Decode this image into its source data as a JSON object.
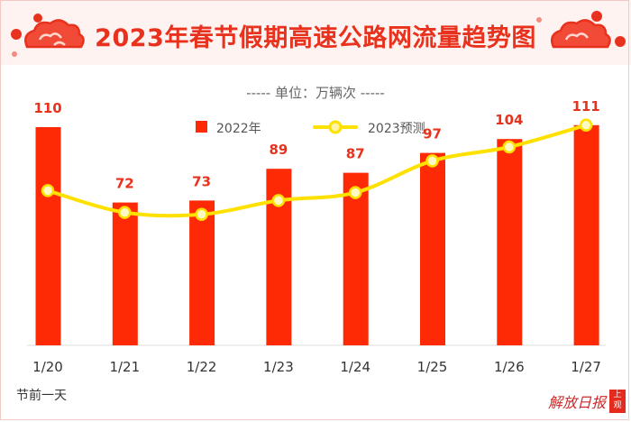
{
  "title": "2023年春节假期高速公路网流量趋势图",
  "unit_label": "----- 单位：万辆次 -----",
  "legend": {
    "bar_label": "2022年",
    "line_label": "2023预测"
  },
  "note": "节前一天",
  "logo": {
    "text": "解放日报",
    "badge": "上观"
  },
  "colors": {
    "bar": "#fd2a05",
    "line": "#ffe100",
    "title": "#e8321e"
  },
  "chart_data": {
    "type": "bar",
    "categories": [
      "1/20",
      "1/21",
      "1/22",
      "1/23",
      "1/24",
      "1/25",
      "1/26",
      "1/27"
    ],
    "series": [
      {
        "name": "2022年",
        "type": "bar",
        "values": [
          110,
          72,
          73,
          89,
          87,
          97,
          104,
          111
        ]
      },
      {
        "name": "2023预测",
        "type": "line",
        "values": [
          78,
          67,
          66,
          73,
          77,
          93,
          100,
          111
        ]
      }
    ],
    "data_labels": [
      "110",
      "72",
      "73",
      "89",
      "87",
      "97",
      "104",
      "111"
    ],
    "ylim": [
      0,
      130
    ],
    "grid": false
  }
}
